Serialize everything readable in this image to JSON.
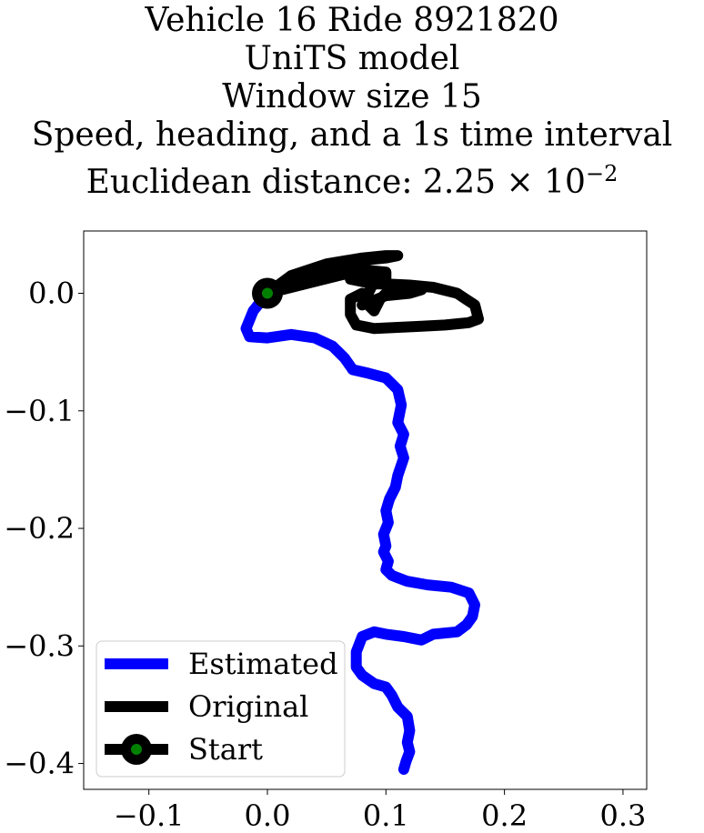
{
  "title": {
    "line1": "Vehicle 16 Ride 8921820",
    "line2": "UniTS model",
    "line3": "Window size 15",
    "line4": "Speed, heading, and a 1s time interval",
    "line5_prefix": "Euclidean distance: 2.25 × 10",
    "line5_exp": "−2"
  },
  "chart_data": {
    "type": "line",
    "xlim": [
      -0.155,
      0.32
    ],
    "ylim": [
      -0.422,
      0.053
    ],
    "xticks": [
      -0.1,
      0.0,
      0.1,
      0.2,
      0.3
    ],
    "xtick_labels": [
      "−0.1",
      "0.0",
      "0.1",
      "0.2",
      "0.3"
    ],
    "yticks": [
      0.0,
      -0.1,
      -0.2,
      -0.3,
      -0.4
    ],
    "ytick_labels": [
      "0.0",
      "−0.1",
      "−0.2",
      "−0.3",
      "−0.4"
    ],
    "legend_position": "lower-left",
    "colors": {
      "estimated": "#0000ff",
      "original": "#000000",
      "start_marker_face": "#008000",
      "start_marker_edge": "#000000"
    },
    "series": [
      {
        "name": "Estimated",
        "x": [
          0.0,
          -0.012,
          -0.018,
          -0.015,
          0.0,
          0.02,
          0.04,
          0.055,
          0.065,
          0.072,
          0.085,
          0.1,
          0.11,
          0.113,
          0.11,
          0.115,
          0.112,
          0.115,
          0.11,
          0.108,
          0.103,
          0.1,
          0.102,
          0.098,
          0.1,
          0.098,
          0.102,
          0.1,
          0.105,
          0.11,
          0.118,
          0.135,
          0.155,
          0.17,
          0.175,
          0.173,
          0.168,
          0.16,
          0.14,
          0.13,
          0.115,
          0.1,
          0.09,
          0.08,
          0.075,
          0.075,
          0.08,
          0.09,
          0.1,
          0.105,
          0.11,
          0.118,
          0.12,
          0.118,
          0.12,
          0.117,
          0.115
        ],
        "y": [
          0.0,
          -0.015,
          -0.03,
          -0.037,
          -0.038,
          -0.035,
          -0.038,
          -0.045,
          -0.055,
          -0.065,
          -0.068,
          -0.072,
          -0.082,
          -0.095,
          -0.11,
          -0.12,
          -0.13,
          -0.14,
          -0.155,
          -0.165,
          -0.175,
          -0.185,
          -0.195,
          -0.205,
          -0.215,
          -0.22,
          -0.228,
          -0.235,
          -0.24,
          -0.242,
          -0.245,
          -0.248,
          -0.25,
          -0.255,
          -0.265,
          -0.275,
          -0.282,
          -0.288,
          -0.29,
          -0.295,
          -0.292,
          -0.29,
          -0.288,
          -0.292,
          -0.305,
          -0.318,
          -0.325,
          -0.332,
          -0.335,
          -0.342,
          -0.352,
          -0.36,
          -0.372,
          -0.382,
          -0.39,
          -0.398,
          -0.405
        ]
      },
      {
        "name": "Original",
        "x": [
          0.0,
          0.02,
          0.05,
          0.08,
          0.1,
          0.1,
          0.09,
          0.08,
          0.07,
          0.08,
          0.09,
          0.1,
          0.12,
          0.14,
          0.16,
          0.175,
          0.178,
          0.17,
          0.15,
          0.13,
          0.11,
          0.09,
          0.075,
          0.07,
          0.07,
          0.08,
          0.085,
          0.09,
          0.095,
          0.1,
          0.12,
          0.13,
          0.12,
          0.1,
          0.085,
          0.08,
          0.085,
          0.09,
          0.1,
          0.08,
          0.06,
          0.04,
          0.02,
          0.0,
          0.02,
          0.05,
          0.08,
          0.1,
          0.11,
          0.1,
          0.08,
          0.05,
          0.02,
          0.0
        ],
        "y": [
          0.0,
          0.012,
          0.02,
          0.02,
          0.018,
          0.01,
          0.012,
          0.015,
          0.012,
          0.01,
          0.008,
          0.008,
          0.007,
          0.005,
          0.0,
          -0.01,
          -0.022,
          -0.025,
          -0.027,
          -0.028,
          -0.029,
          -0.03,
          -0.027,
          -0.018,
          -0.005,
          0.0,
          -0.01,
          -0.015,
          -0.005,
          0.0,
          0.005,
          0.003,
          0.0,
          -0.002,
          -0.008,
          -0.01,
          0.0,
          0.01,
          0.018,
          0.02,
          0.015,
          0.01,
          0.005,
          0.0,
          0.015,
          0.025,
          0.03,
          0.032,
          0.032,
          0.03,
          0.028,
          0.022,
          0.012,
          0.0
        ]
      }
    ],
    "start_point": {
      "name": "Start",
      "x": 0.0,
      "y": 0.0
    }
  }
}
